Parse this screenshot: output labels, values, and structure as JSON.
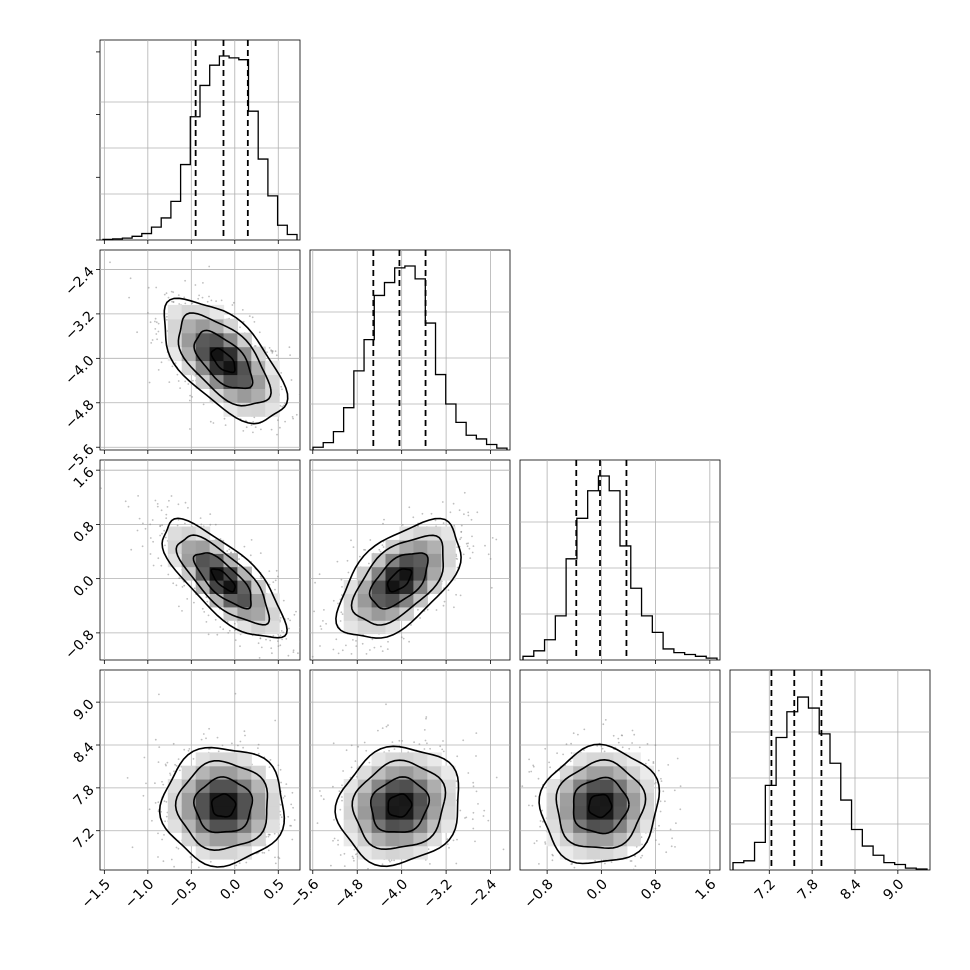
{
  "chart_data": {
    "type": "corner",
    "title": "",
    "n_params": 4,
    "grid": true,
    "parameters": [
      {
        "ticks": [
          "−1.5",
          "−1.0",
          "−0.5",
          "0.0",
          "0.5"
        ],
        "tick_values": [
          -1.5,
          -1.0,
          -0.5,
          0.0,
          0.5
        ],
        "range": [
          -1.55,
          0.75
        ],
        "quantiles": [
          -0.45,
          -0.13,
          0.15
        ],
        "median": -0.13,
        "hist": [
          0.3,
          0.6,
          1.0,
          2.0,
          3.5,
          7.0,
          12.0,
          21.0,
          41.0,
          67.0,
          84.0,
          95.0,
          100.0,
          99.0,
          98.0,
          70.0,
          44.0,
          24.0,
          8.0,
          3.0
        ]
      },
      {
        "ticks": [
          "−5.6",
          "−4.8",
          "−4.0",
          "−3.2",
          "−2.4"
        ],
        "tick_values": [
          -5.6,
          -4.8,
          -4.0,
          -3.2,
          -2.4
        ],
        "range": [
          -5.65,
          -2.05
        ],
        "quantiles": [
          -4.51,
          -4.04,
          -3.57
        ],
        "median": -4.04,
        "hist": [
          1.5,
          4.0,
          10.0,
          23.0,
          43.0,
          60.0,
          84.0,
          91.0,
          99.0,
          100.0,
          93.0,
          69.0,
          41.0,
          25.0,
          15.0,
          8.0,
          6.0,
          3.0,
          1.0
        ]
      },
      {
        "ticks": [
          "−0.8",
          "0.0",
          "0.8",
          "1.6"
        ],
        "tick_values": [
          -0.8,
          0.0,
          0.8,
          1.6
        ],
        "range": [
          -1.2,
          1.75
        ],
        "quantiles": [
          -0.37,
          -0.02,
          0.37
        ],
        "median": -0.02,
        "hist": [
          2.0,
          5.0,
          11.0,
          24.0,
          55.0,
          77.0,
          92.0,
          100.0,
          92.0,
          62.0,
          39.0,
          24.0,
          15.0,
          6.0,
          4.0,
          3.0,
          2.0,
          1.0
        ]
      },
      {
        "ticks": [
          "7.2",
          "7.8",
          "8.4",
          "9.0"
        ],
        "tick_values": [
          7.2,
          7.8,
          8.4,
          9.0
        ],
        "range": [
          6.65,
          9.45
        ],
        "quantiles": [
          7.23,
          7.55,
          7.93
        ],
        "median": 7.55,
        "hist": [
          4.0,
          5.0,
          15.0,
          46.0,
          72.0,
          86.0,
          94.0,
          88.0,
          74.0,
          58.0,
          38.0,
          22.0,
          13.0,
          8.0,
          4.0,
          3.0,
          1.0,
          0.5
        ]
      }
    ],
    "correlations": {
      "1-0": -0.6,
      "2-0": -0.75,
      "2-1": 0.55,
      "3-0": 0.0,
      "3-1": 0.1,
      "3-2": 0.05
    }
  }
}
